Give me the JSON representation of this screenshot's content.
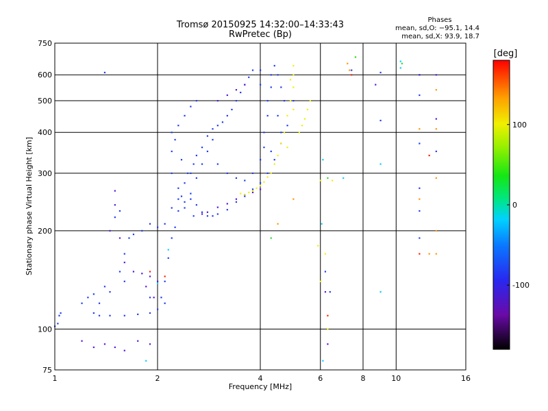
{
  "chart_data": {
    "type": "scatter",
    "title": "Tromsø 20150925 14:32:00–14:33:43",
    "subtitle": "RwPretec (Bp)",
    "phases_info": {
      "heading": "Phases",
      "line1": "mean, sd,O: −95.1, 14.4",
      "line2": "mean, sd,X:  93.9, 18.7"
    },
    "xlabel": "Frequency [MHz]",
    "ylabel": "Stationary phase Virtual Height [km]",
    "x_scale": "log",
    "y_scale": "log",
    "xlim": [
      1,
      16
    ],
    "ylim": [
      75,
      750
    ],
    "x_ticks": [
      1,
      2,
      4,
      6,
      8,
      10,
      16
    ],
    "y_ticks": [
      75,
      100,
      200,
      300,
      400,
      500,
      600,
      750
    ],
    "grid": true,
    "colorbar": {
      "label": "[deg]",
      "range": [
        -180,
        180
      ],
      "ticks": [
        100,
        0,
        -100
      ],
      "colormap": "rainbow"
    },
    "series": [
      {
        "phase": -95,
        "color": "#1e3cf0",
        "points": [
          [
            1.0,
            102
          ],
          [
            1.02,
            104
          ],
          [
            1.03,
            110
          ],
          [
            1.04,
            112
          ],
          [
            1.3,
            112
          ],
          [
            1.35,
            110
          ],
          [
            1.45,
            110
          ],
          [
            1.6,
            110
          ],
          [
            1.75,
            111
          ],
          [
            1.9,
            112
          ],
          [
            2.0,
            115
          ],
          [
            2.05,
            125
          ],
          [
            2.1,
            140
          ],
          [
            2.15,
            165
          ],
          [
            2.2,
            190
          ],
          [
            2.25,
            205
          ],
          [
            2.3,
            230
          ],
          [
            2.35,
            255
          ],
          [
            2.4,
            280
          ],
          [
            2.5,
            300
          ],
          [
            2.55,
            320
          ],
          [
            2.6,
            340
          ],
          [
            2.7,
            360
          ],
          [
            2.8,
            390
          ],
          [
            2.9,
            410
          ],
          [
            3.0,
            420
          ],
          [
            3.1,
            430
          ],
          [
            3.2,
            450
          ],
          [
            3.3,
            470
          ],
          [
            3.4,
            500
          ],
          [
            3.5,
            530
          ],
          [
            3.6,
            560
          ],
          [
            3.7,
            590
          ],
          [
            3.8,
            620
          ],
          [
            1.35,
            120
          ],
          [
            1.45,
            130
          ],
          [
            1.55,
            150
          ],
          [
            1.6,
            170
          ],
          [
            1.65,
            190
          ],
          [
            1.55,
            230
          ],
          [
            1.5,
            220
          ],
          [
            1.7,
            195
          ],
          [
            1.8,
            200
          ],
          [
            1.9,
            210
          ],
          [
            2.0,
            205
          ],
          [
            2.1,
            210
          ],
          [
            2.2,
            235
          ],
          [
            2.3,
            250
          ],
          [
            2.4,
            245
          ],
          [
            2.5,
            250
          ],
          [
            2.6,
            240
          ],
          [
            2.7,
            228
          ],
          [
            2.8,
            222
          ],
          [
            2.9,
            222
          ],
          [
            3.0,
            225
          ],
          [
            3.2,
            232
          ],
          [
            3.4,
            245
          ],
          [
            3.6,
            255
          ],
          [
            3.8,
            268
          ],
          [
            4.0,
            280
          ],
          [
            4.2,
            300
          ],
          [
            4.4,
            330
          ],
          [
            4.6,
            370
          ],
          [
            4.8,
            420
          ],
          [
            5.0,
            500
          ],
          [
            2.2,
            300
          ],
          [
            2.2,
            350
          ],
          [
            2.2,
            400
          ],
          [
            2.3,
            420
          ],
          [
            2.4,
            450
          ],
          [
            2.5,
            480
          ],
          [
            2.6,
            500
          ],
          [
            2.5,
            260
          ],
          [
            2.6,
            290
          ],
          [
            2.7,
            320
          ],
          [
            2.8,
            350
          ],
          [
            2.9,
            380
          ],
          [
            3.0,
            320
          ],
          [
            3.2,
            300
          ],
          [
            3.4,
            290
          ],
          [
            3.6,
            285
          ],
          [
            3.8,
            300
          ],
          [
            4.0,
            330
          ],
          [
            4.1,
            360
          ],
          [
            4.1,
            400
          ],
          [
            4.2,
            450
          ],
          [
            4.2,
            500
          ],
          [
            4.3,
            550
          ],
          [
            4.3,
            600
          ],
          [
            4.4,
            640
          ],
          [
            4.5,
            600
          ],
          [
            4.6,
            550
          ],
          [
            4.7,
            500
          ],
          [
            4.5,
            450
          ],
          [
            4.6,
            400
          ],
          [
            4.3,
            350
          ],
          [
            4.0,
            620
          ],
          [
            4.0,
            560
          ],
          [
            1.4,
            610
          ],
          [
            2.25,
            380
          ],
          [
            2.35,
            330
          ],
          [
            2.45,
            300
          ],
          [
            2.3,
            270
          ],
          [
            2.4,
            235
          ],
          [
            2.55,
            222
          ],
          [
            1.2,
            120
          ],
          [
            1.25,
            125
          ],
          [
            1.3,
            128
          ],
          [
            1.4,
            135
          ],
          [
            1.6,
            140
          ],
          [
            1.9,
            125
          ],
          [
            2.1,
            120
          ],
          [
            6.2,
            150
          ],
          [
            6.4,
            130
          ],
          [
            7.4,
            620
          ],
          [
            9.0,
            610
          ],
          [
            11.7,
            520
          ],
          [
            11.7,
            600
          ],
          [
            9.0,
            435
          ],
          [
            11.7,
            370
          ],
          [
            13.1,
            350
          ],
          [
            11.7,
            270
          ],
          [
            11.7,
            230
          ],
          [
            11.7,
            190
          ]
        ]
      },
      {
        "phase": -115,
        "color": "#5a14dc",
        "points": [
          [
            1.2,
            92
          ],
          [
            1.3,
            88
          ],
          [
            1.4,
            90
          ],
          [
            1.5,
            88
          ],
          [
            1.6,
            86
          ],
          [
            1.75,
            92
          ],
          [
            1.9,
            90
          ],
          [
            1.55,
            190
          ],
          [
            1.6,
            160
          ],
          [
            1.7,
            150
          ],
          [
            1.8,
            148
          ],
          [
            1.9,
            145
          ],
          [
            2.0,
            140
          ],
          [
            1.85,
            135
          ],
          [
            1.95,
            125
          ],
          [
            2.7,
            225
          ],
          [
            2.8,
            228
          ],
          [
            3.0,
            236
          ],
          [
            3.2,
            242
          ],
          [
            3.4,
            250
          ],
          [
            3.6,
            258
          ],
          [
            3.8,
            262
          ],
          [
            4.0,
            268
          ],
          [
            3.0,
            500
          ],
          [
            3.2,
            520
          ],
          [
            3.4,
            540
          ],
          [
            3.6,
            560
          ],
          [
            1.5,
            240
          ],
          [
            1.5,
            265
          ],
          [
            6.3,
            90
          ],
          [
            6.2,
            130
          ],
          [
            8.7,
            560
          ],
          [
            13.1,
            440
          ],
          [
            13.1,
            600
          ],
          [
            11.7,
            600
          ],
          [
            1.45,
            200
          ]
        ]
      },
      {
        "phase": 95,
        "color": "#f0f000",
        "points": [
          [
            3.5,
            260
          ],
          [
            3.6,
            258
          ],
          [
            3.7,
            262
          ],
          [
            3.8,
            265
          ],
          [
            3.9,
            270
          ],
          [
            4.0,
            275
          ],
          [
            4.1,
            282
          ],
          [
            4.2,
            292
          ],
          [
            4.3,
            300
          ],
          [
            4.4,
            320
          ],
          [
            4.5,
            340
          ],
          [
            4.6,
            370
          ],
          [
            4.7,
            400
          ],
          [
            4.8,
            450
          ],
          [
            4.9,
            500
          ],
          [
            5.0,
            550
          ],
          [
            5.0,
            600
          ],
          [
            5.0,
            640
          ],
          [
            4.9,
            580
          ],
          [
            5.2,
            400
          ],
          [
            5.3,
            420
          ],
          [
            5.4,
            440
          ],
          [
            5.5,
            470
          ],
          [
            5.6,
            500
          ],
          [
            5.0,
            470
          ],
          [
            4.8,
            360
          ],
          [
            6.3,
            100
          ],
          [
            6.0,
            140
          ],
          [
            6.2,
            170
          ],
          [
            5.9,
            180
          ],
          [
            7.6,
            680
          ],
          [
            6.0,
            285
          ],
          [
            6.5,
            285
          ]
        ]
      },
      {
        "phase": 150,
        "color": "#ff9600",
        "points": [
          [
            7.2,
            650
          ],
          [
            5.0,
            250
          ],
          [
            4.5,
            210
          ],
          [
            11.7,
            410
          ],
          [
            13.1,
            410
          ],
          [
            13.1,
            540
          ],
          [
            13.1,
            290
          ],
          [
            11.7,
            250
          ],
          [
            12.5,
            170
          ],
          [
            13.1,
            170
          ],
          [
            13.1,
            200
          ],
          [
            7.3,
            620
          ]
        ]
      },
      {
        "phase": 170,
        "color": "#ff1e00",
        "points": [
          [
            1.9,
            150
          ],
          [
            7.4,
            600
          ],
          [
            6.3,
            110
          ],
          [
            12.5,
            340
          ],
          [
            11.7,
            170
          ],
          [
            2.1,
            145
          ]
        ]
      },
      {
        "phase": -20,
        "color": "#00d2ff",
        "points": [
          [
            10.3,
            630
          ],
          [
            10.3,
            660
          ],
          [
            1.85,
            80
          ],
          [
            6.1,
            80
          ],
          [
            6.05,
            210
          ],
          [
            9.0,
            130
          ],
          [
            9.0,
            320
          ],
          [
            6.1,
            330
          ],
          [
            7.0,
            290
          ],
          [
            2.0,
            138
          ],
          [
            2.15,
            175
          ]
        ]
      },
      {
        "phase": 30,
        "color": "#28dc28",
        "points": [
          [
            7.6,
            680
          ],
          [
            10.4,
            650
          ],
          [
            6.3,
            290
          ],
          [
            4.3,
            190
          ]
        ]
      }
    ]
  }
}
